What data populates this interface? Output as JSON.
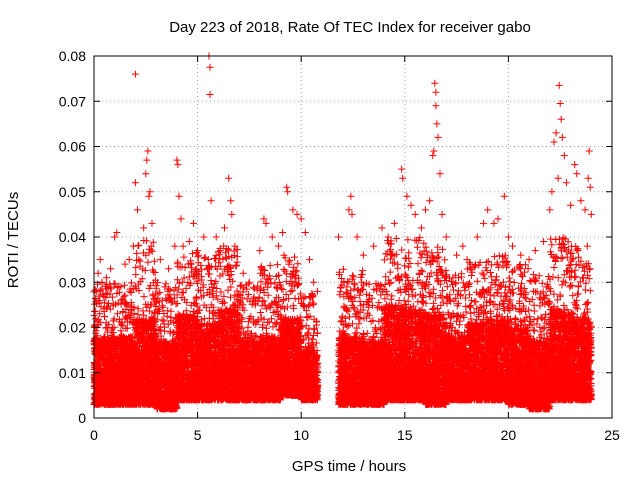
{
  "chart_data": {
    "type": "scatter",
    "title": "Day 223 of 2018, Rate Of TEC Index for receiver gabo",
    "xlabel": "GPS time / hours",
    "ylabel": "ROTI / TECUs",
    "xlim": [
      0,
      25
    ],
    "ylim": [
      0,
      0.08
    ],
    "x_ticks": [
      "0",
      "5",
      "10",
      "15",
      "20",
      "25"
    ],
    "y_ticks": [
      "0",
      "0.01",
      "0.02",
      "0.03",
      "0.04",
      "0.05",
      "0.06",
      "0.07",
      "0.08"
    ],
    "grid": true,
    "marker": "+",
    "colors": {
      "series": "#ff0000",
      "grid": "#a0a0a0"
    },
    "series": [
      {
        "values": [
          [
            0.2,
            0.032
          ],
          [
            0.3,
            0.035
          ],
          [
            0.6,
            0.031
          ],
          [
            0.8,
            0.033
          ],
          [
            1.0,
            0.04
          ],
          [
            1.1,
            0.041
          ],
          [
            1.5,
            0.034
          ],
          [
            1.7,
            0.035
          ],
          [
            1.9,
            0.038
          ],
          [
            2.0,
            0.076
          ],
          [
            2.0,
            0.052
          ],
          [
            2.1,
            0.046
          ],
          [
            2.4,
            0.042
          ],
          [
            2.5,
            0.054
          ],
          [
            2.55,
            0.057
          ],
          [
            2.6,
            0.059
          ],
          [
            2.65,
            0.049
          ],
          [
            2.7,
            0.05
          ],
          [
            2.8,
            0.043
          ],
          [
            3.2,
            0.035
          ],
          [
            3.6,
            0.033
          ],
          [
            3.9,
            0.038
          ],
          [
            4.0,
            0.057
          ],
          [
            4.05,
            0.056
          ],
          [
            4.1,
            0.049
          ],
          [
            4.2,
            0.044
          ],
          [
            4.3,
            0.038
          ],
          [
            4.6,
            0.039
          ],
          [
            4.8,
            0.043
          ],
          [
            5.0,
            0.037
          ],
          [
            5.3,
            0.04
          ],
          [
            5.55,
            0.08
          ],
          [
            5.6,
            0.0775
          ],
          [
            5.6,
            0.0715
          ],
          [
            5.65,
            0.048
          ],
          [
            5.9,
            0.04
          ],
          [
            6.1,
            0.037
          ],
          [
            6.3,
            0.042
          ],
          [
            6.5,
            0.053
          ],
          [
            6.6,
            0.048
          ],
          [
            6.65,
            0.045
          ],
          [
            6.8,
            0.038
          ],
          [
            7.2,
            0.032
          ],
          [
            7.5,
            0.03
          ],
          [
            8.0,
            0.037
          ],
          [
            8.2,
            0.044
          ],
          [
            8.3,
            0.043
          ],
          [
            8.6,
            0.04
          ],
          [
            8.9,
            0.038
          ],
          [
            9.1,
            0.041
          ],
          [
            9.3,
            0.051
          ],
          [
            9.35,
            0.05
          ],
          [
            9.6,
            0.046
          ],
          [
            9.8,
            0.045
          ],
          [
            10.0,
            0.044
          ],
          [
            10.2,
            0.041
          ],
          [
            10.4,
            0.035
          ],
          [
            10.6,
            0.03
          ],
          [
            11.8,
            0.04
          ],
          [
            12.3,
            0.046
          ],
          [
            12.4,
            0.049
          ],
          [
            12.45,
            0.045
          ],
          [
            12.7,
            0.04
          ],
          [
            13.0,
            0.036
          ],
          [
            13.5,
            0.038
          ],
          [
            13.9,
            0.042
          ],
          [
            14.2,
            0.04
          ],
          [
            14.5,
            0.043
          ],
          [
            14.85,
            0.055
          ],
          [
            14.9,
            0.053
          ],
          [
            15.1,
            0.049
          ],
          [
            15.3,
            0.047
          ],
          [
            15.5,
            0.045
          ],
          [
            15.8,
            0.042
          ],
          [
            16.0,
            0.046
          ],
          [
            16.2,
            0.048
          ],
          [
            16.35,
            0.058
          ],
          [
            16.4,
            0.059
          ],
          [
            16.45,
            0.074
          ],
          [
            16.5,
            0.072
          ],
          [
            16.5,
            0.069
          ],
          [
            16.55,
            0.065
          ],
          [
            16.6,
            0.062
          ],
          [
            16.7,
            0.054
          ],
          [
            16.8,
            0.045
          ],
          [
            17.0,
            0.04
          ],
          [
            17.5,
            0.036
          ],
          [
            17.8,
            0.038
          ],
          [
            18.0,
            0.035
          ],
          [
            18.5,
            0.04
          ],
          [
            18.8,
            0.043
          ],
          [
            19.0,
            0.046
          ],
          [
            19.3,
            0.043
          ],
          [
            19.5,
            0.044
          ],
          [
            19.8,
            0.049
          ],
          [
            20.0,
            0.04
          ],
          [
            20.2,
            0.038
          ],
          [
            20.6,
            0.036
          ],
          [
            21.0,
            0.035
          ],
          [
            21.3,
            0.037
          ],
          [
            21.7,
            0.039
          ],
          [
            22.0,
            0.046
          ],
          [
            22.1,
            0.05
          ],
          [
            22.2,
            0.061
          ],
          [
            22.3,
            0.063
          ],
          [
            22.4,
            0.053
          ],
          [
            22.45,
            0.0735
          ],
          [
            22.5,
            0.0695
          ],
          [
            22.55,
            0.066
          ],
          [
            22.6,
            0.062
          ],
          [
            22.7,
            0.058
          ],
          [
            22.8,
            0.052
          ],
          [
            23.0,
            0.047
          ],
          [
            23.2,
            0.056
          ],
          [
            23.3,
            0.054
          ],
          [
            23.5,
            0.048
          ],
          [
            23.7,
            0.046
          ],
          [
            23.85,
            0.053
          ],
          [
            23.9,
            0.059
          ],
          [
            23.95,
            0.051
          ],
          [
            24.0,
            0.045
          ]
        ],
        "bands": [
          {
            "x0": 0.0,
            "x1": 2.0,
            "lo": 0.003,
            "hi": 0.03,
            "dense_hi": 0.018
          },
          {
            "x0": 2.0,
            "x1": 3.0,
            "lo": 0.003,
            "hi": 0.04,
            "dense_hi": 0.022
          },
          {
            "x0": 3.0,
            "x1": 4.0,
            "lo": 0.002,
            "hi": 0.03,
            "dense_hi": 0.017
          },
          {
            "x0": 4.0,
            "x1": 5.0,
            "lo": 0.004,
            "hi": 0.037,
            "dense_hi": 0.023
          },
          {
            "x0": 5.0,
            "x1": 6.0,
            "lo": 0.004,
            "hi": 0.036,
            "dense_hi": 0.021
          },
          {
            "x0": 6.0,
            "x1": 7.0,
            "lo": 0.004,
            "hi": 0.038,
            "dense_hi": 0.024
          },
          {
            "x0": 7.0,
            "x1": 8.0,
            "lo": 0.004,
            "hi": 0.03,
            "dense_hi": 0.017
          },
          {
            "x0": 8.0,
            "x1": 9.0,
            "lo": 0.004,
            "hi": 0.034,
            "dense_hi": 0.018
          },
          {
            "x0": 9.0,
            "x1": 10.0,
            "lo": 0.005,
            "hi": 0.036,
            "dense_hi": 0.022
          },
          {
            "x0": 10.0,
            "x1": 10.8,
            "lo": 0.004,
            "hi": 0.028,
            "dense_hi": 0.015
          },
          {
            "x0": 11.8,
            "x1": 13.0,
            "lo": 0.003,
            "hi": 0.033,
            "dense_hi": 0.018
          },
          {
            "x0": 13.0,
            "x1": 14.0,
            "lo": 0.003,
            "hi": 0.03,
            "dense_hi": 0.017
          },
          {
            "x0": 14.0,
            "x1": 15.0,
            "lo": 0.004,
            "hi": 0.04,
            "dense_hi": 0.025
          },
          {
            "x0": 15.0,
            "x1": 16.0,
            "lo": 0.004,
            "hi": 0.04,
            "dense_hi": 0.024
          },
          {
            "x0": 16.0,
            "x1": 17.0,
            "lo": 0.003,
            "hi": 0.038,
            "dense_hi": 0.023
          },
          {
            "x0": 17.0,
            "x1": 18.0,
            "lo": 0.004,
            "hi": 0.032,
            "dense_hi": 0.018
          },
          {
            "x0": 18.0,
            "x1": 19.0,
            "lo": 0.004,
            "hi": 0.035,
            "dense_hi": 0.021
          },
          {
            "x0": 19.0,
            "x1": 20.0,
            "lo": 0.004,
            "hi": 0.036,
            "dense_hi": 0.022
          },
          {
            "x0": 20.0,
            "x1": 21.0,
            "lo": 0.003,
            "hi": 0.034,
            "dense_hi": 0.02
          },
          {
            "x0": 21.0,
            "x1": 22.0,
            "lo": 0.002,
            "hi": 0.032,
            "dense_hi": 0.017
          },
          {
            "x0": 22.0,
            "x1": 23.0,
            "lo": 0.004,
            "hi": 0.04,
            "dense_hi": 0.024
          },
          {
            "x0": 23.0,
            "x1": 24.0,
            "lo": 0.004,
            "hi": 0.038,
            "dense_hi": 0.022
          }
        ]
      }
    ]
  }
}
